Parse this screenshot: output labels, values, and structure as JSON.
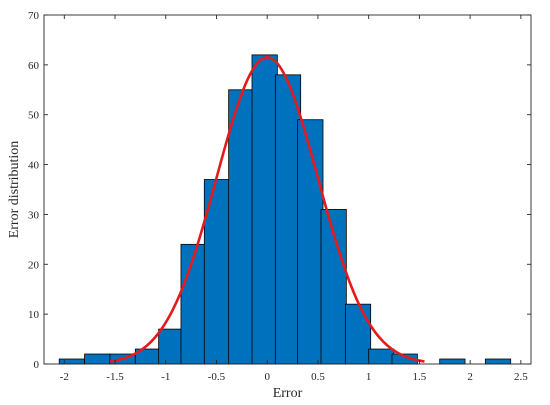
{
  "chart_data": {
    "type": "bar",
    "xlabel": "Error",
    "ylabel": "Error distribution",
    "xlim": [
      -2.2,
      2.6
    ],
    "ylim": [
      0,
      70
    ],
    "xticks": [
      "-2",
      "-1.5",
      "-1",
      "-0.5",
      "0",
      "0.5",
      "1",
      "1.5",
      "2",
      "2.5"
    ],
    "yticks": [
      "0",
      "10",
      "20",
      "30",
      "40",
      "50",
      "60",
      "70"
    ],
    "bin_width": 0.25,
    "bins": [
      {
        "start": -2.05,
        "value": 1
      },
      {
        "start": -1.8,
        "value": 2
      },
      {
        "start": -1.55,
        "value": 2
      },
      {
        "start": -1.3,
        "value": 3
      },
      {
        "start": -1.07,
        "value": 7
      },
      {
        "start": -0.85,
        "value": 24
      },
      {
        "start": -0.62,
        "value": 37
      },
      {
        "start": -0.38,
        "value": 55
      },
      {
        "start": -0.15,
        "value": 62
      },
      {
        "start": 0.08,
        "value": 58
      },
      {
        "start": 0.3,
        "value": 49
      },
      {
        "start": 0.53,
        "value": 31
      },
      {
        "start": 0.77,
        "value": 12
      },
      {
        "start": 1.0,
        "value": 3
      },
      {
        "start": 1.23,
        "value": 2
      },
      {
        "start": 1.7,
        "value": 1
      },
      {
        "start": 2.15,
        "value": 1
      }
    ],
    "fit_curve": {
      "type": "normal",
      "mean": 0.0,
      "sigma": 0.5,
      "peak": 61.5,
      "range": [
        -1.55,
        1.55
      ]
    },
    "grid": false,
    "colors": {
      "bars": "#0072BD",
      "bar_edge": "#000000",
      "fit": "#E41A1C"
    }
  }
}
